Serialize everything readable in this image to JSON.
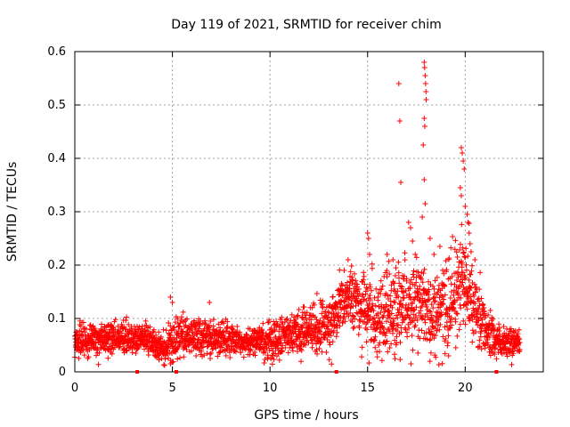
{
  "chart_data": {
    "type": "scatter",
    "title": "Day 119 of 2021, SRMTID for receiver chim",
    "xlabel": "GPS time / hours",
    "ylabel": "SRMTID / TECUs",
    "xlim": [
      0,
      24
    ],
    "ylim": [
      0,
      0.6
    ],
    "xticks": [
      "0",
      "5",
      "10",
      "15",
      "20"
    ],
    "yticks": [
      "0",
      "0.1",
      "0.2",
      "0.3",
      "0.4",
      "0.5",
      "0.6"
    ],
    "grid": true,
    "marker": "+",
    "series_color": "#ff0000",
    "gap_markers_x": [
      3.2,
      5.2,
      13.4,
      21.6
    ],
    "profile": {
      "x": [
        0,
        1,
        2,
        3,
        4,
        4.5,
        5,
        5.5,
        6,
        7,
        8,
        9,
        10,
        11,
        12,
        13,
        13.5,
        14,
        14.5,
        15,
        15.5,
        16,
        16.5,
        17,
        17.5,
        18,
        18.5,
        19,
        19.5,
        20,
        20.5,
        21,
        21.5,
        22,
        22.8
      ],
      "median": [
        0.055,
        0.06,
        0.065,
        0.06,
        0.055,
        0.04,
        0.06,
        0.07,
        0.065,
        0.065,
        0.06,
        0.055,
        0.06,
        0.07,
        0.075,
        0.085,
        0.12,
        0.14,
        0.13,
        0.11,
        0.1,
        0.11,
        0.12,
        0.12,
        0.13,
        0.12,
        0.11,
        0.12,
        0.14,
        0.17,
        0.12,
        0.09,
        0.06,
        0.055,
        0.06
      ],
      "spread": [
        0.02,
        0.02,
        0.02,
        0.02,
        0.02,
        0.02,
        0.025,
        0.025,
        0.025,
        0.025,
        0.02,
        0.02,
        0.025,
        0.025,
        0.03,
        0.03,
        0.035,
        0.035,
        0.04,
        0.05,
        0.05,
        0.05,
        0.06,
        0.06,
        0.06,
        0.06,
        0.06,
        0.06,
        0.06,
        0.06,
        0.05,
        0.04,
        0.025,
        0.02,
        0.02
      ]
    },
    "highlights": [
      {
        "x": 15.0,
        "y": 0.26
      },
      {
        "x": 15.05,
        "y": 0.25
      },
      {
        "x": 15.1,
        "y": 0.22
      },
      {
        "x": 16.6,
        "y": 0.54
      },
      {
        "x": 16.65,
        "y": 0.47
      },
      {
        "x": 16.7,
        "y": 0.355
      },
      {
        "x": 17.1,
        "y": 0.28
      },
      {
        "x": 17.2,
        "y": 0.27
      },
      {
        "x": 17.3,
        "y": 0.245
      },
      {
        "x": 17.9,
        "y": 0.58
      },
      {
        "x": 17.92,
        "y": 0.57
      },
      {
        "x": 17.95,
        "y": 0.555
      },
      {
        "x": 17.97,
        "y": 0.54
      },
      {
        "x": 17.99,
        "y": 0.525
      },
      {
        "x": 18.0,
        "y": 0.51
      },
      {
        "x": 17.9,
        "y": 0.475
      },
      {
        "x": 17.93,
        "y": 0.46
      },
      {
        "x": 17.85,
        "y": 0.425
      },
      {
        "x": 17.9,
        "y": 0.36
      },
      {
        "x": 17.95,
        "y": 0.315
      },
      {
        "x": 17.8,
        "y": 0.29
      },
      {
        "x": 18.2,
        "y": 0.25
      },
      {
        "x": 18.4,
        "y": 0.22
      },
      {
        "x": 19.8,
        "y": 0.42
      },
      {
        "x": 19.85,
        "y": 0.41
      },
      {
        "x": 19.9,
        "y": 0.395
      },
      {
        "x": 19.95,
        "y": 0.38
      },
      {
        "x": 19.75,
        "y": 0.345
      },
      {
        "x": 19.8,
        "y": 0.33
      },
      {
        "x": 20.0,
        "y": 0.31
      },
      {
        "x": 20.1,
        "y": 0.295
      },
      {
        "x": 20.15,
        "y": 0.28
      },
      {
        "x": 20.2,
        "y": 0.26
      },
      {
        "x": 20.25,
        "y": 0.24
      },
      {
        "x": 20.3,
        "y": 0.225
      },
      {
        "x": 19.6,
        "y": 0.215
      },
      {
        "x": 20.5,
        "y": 0.21
      },
      {
        "x": 14.0,
        "y": 0.21
      },
      {
        "x": 13.8,
        "y": 0.19
      },
      {
        "x": 16.0,
        "y": 0.22
      },
      {
        "x": 16.3,
        "y": 0.21
      },
      {
        "x": 4.9,
        "y": 0.14
      },
      {
        "x": 5.0,
        "y": 0.13
      },
      {
        "x": 6.9,
        "y": 0.13
      },
      {
        "x": 4.9,
        "y": 0.015
      },
      {
        "x": 4.6,
        "y": 0.012
      }
    ]
  }
}
